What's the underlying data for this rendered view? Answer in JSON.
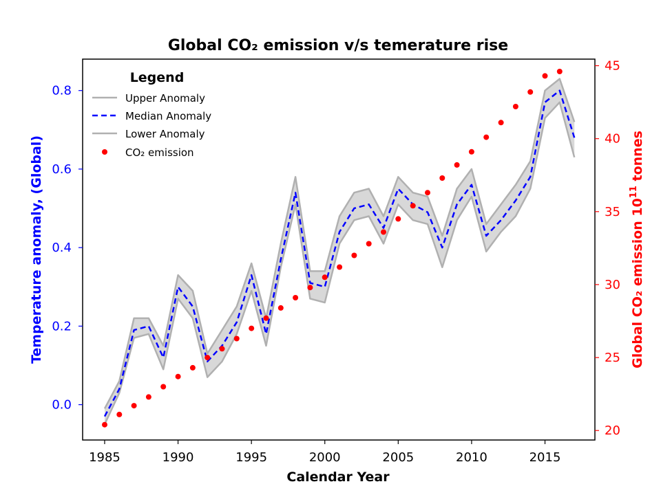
{
  "chart_data": {
    "type": "line",
    "title": "Global CO₂ emission v/s temerature rise",
    "xlabel": "Calendar Year",
    "ylabel_left": "Temperature anomaly, (Global)",
    "ylabel_right_pre": "Global CO₂ emission 10",
    "ylabel_right_sup": "11",
    "ylabel_right_post": " tonnes",
    "xlim": [
      1983.5,
      2018.4
    ],
    "ylim_left": [
      -0.09,
      0.88
    ],
    "ylim_right": [
      19.35,
      45.45
    ],
    "x_ticks": [
      1985,
      1990,
      1995,
      2000,
      2005,
      2010,
      2015
    ],
    "y_left_ticks": [
      "0.0",
      "0.2",
      "0.4",
      "0.6",
      "0.8"
    ],
    "y_right_ticks": [
      "20",
      "25",
      "30",
      "35",
      "40",
      "45"
    ],
    "colors": {
      "left_axis": "#0000ff",
      "right_axis": "#ff0000",
      "band_fill": "#d8d8d8",
      "band_line": "#b0b0b0",
      "median": "#0000ff",
      "points": "#ff0000"
    },
    "legend": {
      "title": "Legend",
      "placement": "upper-left",
      "entries": [
        "Upper Anomaly",
        "Median Anomaly",
        "Lower Anomaly",
        "CO₂ emission"
      ]
    },
    "x": [
      1985,
      1986,
      1987,
      1988,
      1989,
      1990,
      1991,
      1992,
      1993,
      1994,
      1995,
      1996,
      1997,
      1998,
      1999,
      2000,
      2001,
      2002,
      2003,
      2004,
      2005,
      2006,
      2007,
      2008,
      2009,
      2010,
      2011,
      2012,
      2013,
      2014,
      2015,
      2016,
      2017
    ],
    "series": [
      {
        "name": "Upper Anomaly",
        "values": [
          -0.01,
          0.06,
          0.22,
          0.22,
          0.15,
          0.33,
          0.29,
          0.13,
          0.19,
          0.25,
          0.36,
          0.22,
          0.41,
          0.58,
          0.34,
          0.34,
          0.48,
          0.54,
          0.55,
          0.48,
          0.58,
          0.54,
          0.53,
          0.43,
          0.55,
          0.6,
          0.46,
          0.51,
          0.56,
          0.62,
          0.8,
          0.83,
          0.72
        ]
      },
      {
        "name": "Median Anomaly",
        "values": [
          -0.03,
          0.04,
          0.19,
          0.2,
          0.12,
          0.3,
          0.25,
          0.11,
          0.15,
          0.21,
          0.33,
          0.18,
          0.37,
          0.54,
          0.31,
          0.3,
          0.44,
          0.5,
          0.51,
          0.45,
          0.55,
          0.51,
          0.49,
          0.4,
          0.51,
          0.56,
          0.43,
          0.47,
          0.52,
          0.58,
          0.77,
          0.8,
          0.68
        ]
      },
      {
        "name": "Lower Anomaly",
        "values": [
          -0.05,
          0.03,
          0.17,
          0.18,
          0.09,
          0.27,
          0.22,
          0.07,
          0.11,
          0.18,
          0.29,
          0.15,
          0.35,
          0.51,
          0.27,
          0.26,
          0.41,
          0.47,
          0.48,
          0.41,
          0.51,
          0.47,
          0.46,
          0.35,
          0.47,
          0.53,
          0.39,
          0.44,
          0.48,
          0.55,
          0.73,
          0.77,
          0.63
        ]
      },
      {
        "name": "CO₂ emission",
        "axis": "right",
        "values": [
          20.4,
          21.1,
          21.7,
          22.3,
          23.0,
          23.7,
          24.3,
          25.0,
          25.6,
          26.3,
          27.0,
          27.7,
          28.4,
          29.1,
          29.8,
          30.5,
          31.2,
          32.0,
          32.8,
          33.6,
          34.5,
          35.4,
          36.3,
          37.3,
          38.2,
          39.1,
          40.1,
          41.1,
          42.2,
          43.2,
          44.3,
          44.6,
          null
        ]
      }
    ]
  }
}
